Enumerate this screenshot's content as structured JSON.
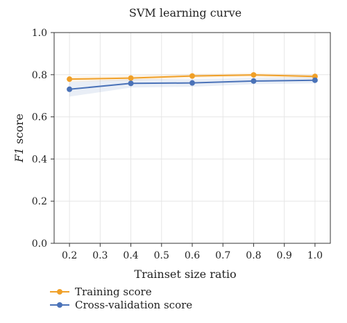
{
  "chart_data": {
    "type": "line",
    "title": "SVM learning curve",
    "xlabel": "Trainset size ratio",
    "ylabel_italic": "F1",
    "ylabel_rest": " score",
    "xlim": [
      0.15,
      1.05
    ],
    "ylim": [
      0.0,
      1.0
    ],
    "xticks": [
      0.2,
      0.3,
      0.4,
      0.5,
      0.6,
      0.7,
      0.8,
      0.9,
      1.0
    ],
    "xtick_labels": [
      "0.2",
      "0.3",
      "0.4",
      "0.5",
      "0.6",
      "0.7",
      "0.8",
      "0.9",
      "1.0"
    ],
    "yticks": [
      0.0,
      0.2,
      0.4,
      0.6,
      0.8,
      1.0
    ],
    "ytick_labels": [
      "0.0",
      "0.2",
      "0.4",
      "0.6",
      "0.8",
      "1.0"
    ],
    "grid": true,
    "legend_position": "bottom-left, below axes",
    "series": [
      {
        "name": "Training score",
        "color": "#f0a028",
        "x": [
          0.2,
          0.4,
          0.6,
          0.8,
          1.0
        ],
        "y": [
          0.779,
          0.784,
          0.794,
          0.799,
          0.792
        ],
        "band": [
          0.012,
          0.012,
          0.01,
          0.01,
          0.01
        ]
      },
      {
        "name": "Cross-validation score",
        "color": "#4a72b8",
        "x": [
          0.2,
          0.4,
          0.6,
          0.8,
          1.0
        ],
        "y": [
          0.731,
          0.759,
          0.761,
          0.77,
          0.774
        ],
        "band": [
          0.035,
          0.02,
          0.018,
          0.015,
          0.015
        ]
      }
    ]
  }
}
